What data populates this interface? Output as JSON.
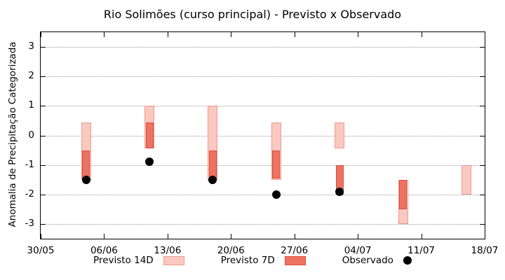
{
  "chart_data": {
    "type": "bar",
    "subtype": "floating-range-bars-with-points",
    "title": "Rio Solimões (curso principal) - Previsto x Observado",
    "ylabel": "Anomalia de Precipitação Categorizada",
    "xlabel": "",
    "ylim": [
      -3.5,
      3.5
    ],
    "xlim_days": [
      0,
      49
    ],
    "grid": "horizontal-dotted",
    "legend_position": "bottom-center",
    "yticks": [
      3,
      2,
      1,
      0,
      -1,
      -2,
      -3
    ],
    "xticks": [
      {
        "label": "30/05",
        "day": 0
      },
      {
        "label": "06/06",
        "day": 7
      },
      {
        "label": "13/06",
        "day": 14
      },
      {
        "label": "20/06",
        "day": 21
      },
      {
        "label": "27/06",
        "day": 28
      },
      {
        "label": "04/07",
        "day": 35
      },
      {
        "label": "11/07",
        "day": 42
      },
      {
        "label": "18/07",
        "day": 49
      }
    ],
    "series": [
      {
        "name": "Previsto 14D",
        "type": "range-bar",
        "color_key": "p14"
      },
      {
        "name": "Previsto 7D",
        "type": "range-bar",
        "color_key": "p7"
      },
      {
        "name": "Observado",
        "type": "point",
        "color_key": "obs"
      }
    ],
    "bars": [
      {
        "date": "04/06",
        "day": 5,
        "previsto_14d": [
          -1.5,
          0.45
        ],
        "previsto_7d": [
          -1.5,
          -0.5
        ],
        "observado": -1.5
      },
      {
        "date": "11/06",
        "day": 12,
        "previsto_14d": [
          -0.45,
          1.0
        ],
        "previsto_7d": [
          -0.45,
          0.45
        ],
        "observado": -0.9
      },
      {
        "date": "18/06",
        "day": 19,
        "previsto_14d": [
          -1.5,
          1.0
        ],
        "previsto_7d": [
          -1.5,
          -0.5
        ],
        "observado": -1.5
      },
      {
        "date": "25/06",
        "day": 26,
        "previsto_14d": [
          -1.5,
          0.45
        ],
        "previsto_7d": [
          -1.45,
          -0.5
        ],
        "observado": -2.0
      },
      {
        "date": "02/07",
        "day": 33,
        "previsto_14d": [
          -0.45,
          0.45
        ],
        "previsto_7d": [
          -2.0,
          -1.0
        ],
        "observado": -1.9
      },
      {
        "date": "09/07",
        "day": 40,
        "previsto_14d": [
          -3.0,
          -1.5
        ],
        "previsto_7d": [
          -2.5,
          -1.5
        ],
        "observado": null
      },
      {
        "date": "16/07",
        "day": 47,
        "previsto_14d": [
          -2.0,
          -1.0
        ],
        "previsto_7d": null,
        "observado": null
      }
    ],
    "legend": [
      {
        "label": "Previsto 14D",
        "swatch": "box-light"
      },
      {
        "label": "Previsto 7D",
        "swatch": "box-dark"
      },
      {
        "label": "Observado",
        "swatch": "dot"
      }
    ],
    "colors": {
      "p14_fill": "#f9c9c1",
      "p14_border": "#ee9a8c",
      "p7_fill": "#ee7261",
      "p7_border": "#d8503c",
      "obs": "#000000",
      "grid": "#999999",
      "axis": "#000000"
    }
  }
}
